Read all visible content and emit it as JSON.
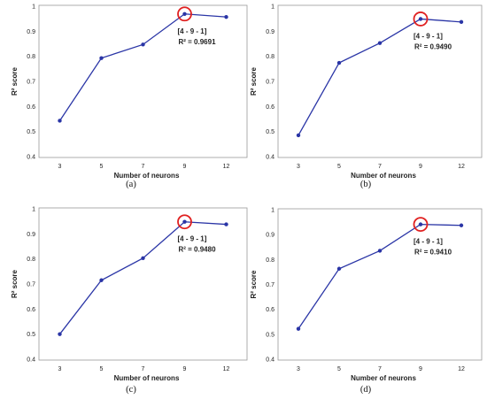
{
  "accent_color": "#2a35a6",
  "highlight_color": "#e02020",
  "chart_data": [
    {
      "type": "line",
      "caption": "(a)",
      "x": [
        3,
        5,
        7,
        9,
        12
      ],
      "categories": [
        "3",
        "5",
        "7",
        "9",
        "12"
      ],
      "series": [
        {
          "values": [
            0.543,
            0.793,
            0.847,
            0.969,
            0.957
          ]
        }
      ],
      "xlabel": "Number of neurons",
      "ylabel": "R² score",
      "ylim": [
        0.4,
        1
      ],
      "yticks": [
        "0.4",
        "0.5",
        "0.6",
        "0.7",
        "0.8",
        "0.9",
        "1"
      ],
      "grid": false,
      "highlight_point": 9,
      "annotation": {
        "architecture": "[4 - 9 - 1]",
        "r2_label": "R² = 0.9691"
      }
    },
    {
      "type": "line",
      "caption": "(b)",
      "x": [
        3,
        5,
        7,
        9,
        12
      ],
      "categories": [
        "3",
        "5",
        "7",
        "9",
        "12"
      ],
      "series": [
        {
          "values": [
            0.485,
            0.774,
            0.853,
            0.949,
            0.937
          ]
        }
      ],
      "xlabel": "Number of neurons",
      "ylabel": "R² score",
      "ylim": [
        0.4,
        1
      ],
      "yticks": [
        "0.4",
        "0.5",
        "0.6",
        "0.7",
        "0.8",
        "0.9",
        "1"
      ],
      "grid": false,
      "highlight_point": 9,
      "annotation": {
        "architecture": "[4 - 9 - 1]",
        "r2_label": "R² = 0.9490"
      }
    },
    {
      "type": "line",
      "caption": "(c)",
      "x": [
        3,
        5,
        7,
        9,
        12
      ],
      "categories": [
        "3",
        "5",
        "7",
        "9",
        "12"
      ],
      "series": [
        {
          "values": [
            0.5,
            0.715,
            0.803,
            0.948,
            0.938
          ]
        }
      ],
      "xlabel": "Number of neurons",
      "ylabel": "R² score",
      "ylim": [
        0.4,
        1
      ],
      "yticks": [
        "0.4",
        "0.5",
        "0.6",
        "0.7",
        "0.8",
        "0.9",
        "1"
      ],
      "grid": false,
      "highlight_point": 9,
      "annotation": {
        "architecture": "[4 - 9 - 1]",
        "r2_label": "R² = 0.9480"
      }
    },
    {
      "type": "line",
      "caption": "(d)",
      "x": [
        3,
        5,
        7,
        9,
        12
      ],
      "categories": [
        "3",
        "5",
        "7",
        "9",
        "12"
      ],
      "series": [
        {
          "values": [
            0.522,
            0.763,
            0.835,
            0.941,
            0.937
          ]
        }
      ],
      "xlabel": "Number of neurons",
      "ylabel": "R² score",
      "ylim": [
        0.4,
        1
      ],
      "yticks": [
        "0.4",
        "0.5",
        "0.6",
        "0.7",
        "0.8",
        "0.9",
        "1"
      ],
      "grid": false,
      "highlight_point": 9,
      "annotation": {
        "architecture": "[4 - 9 - 1]",
        "r2_label": "R² = 0.9410"
      }
    }
  ]
}
